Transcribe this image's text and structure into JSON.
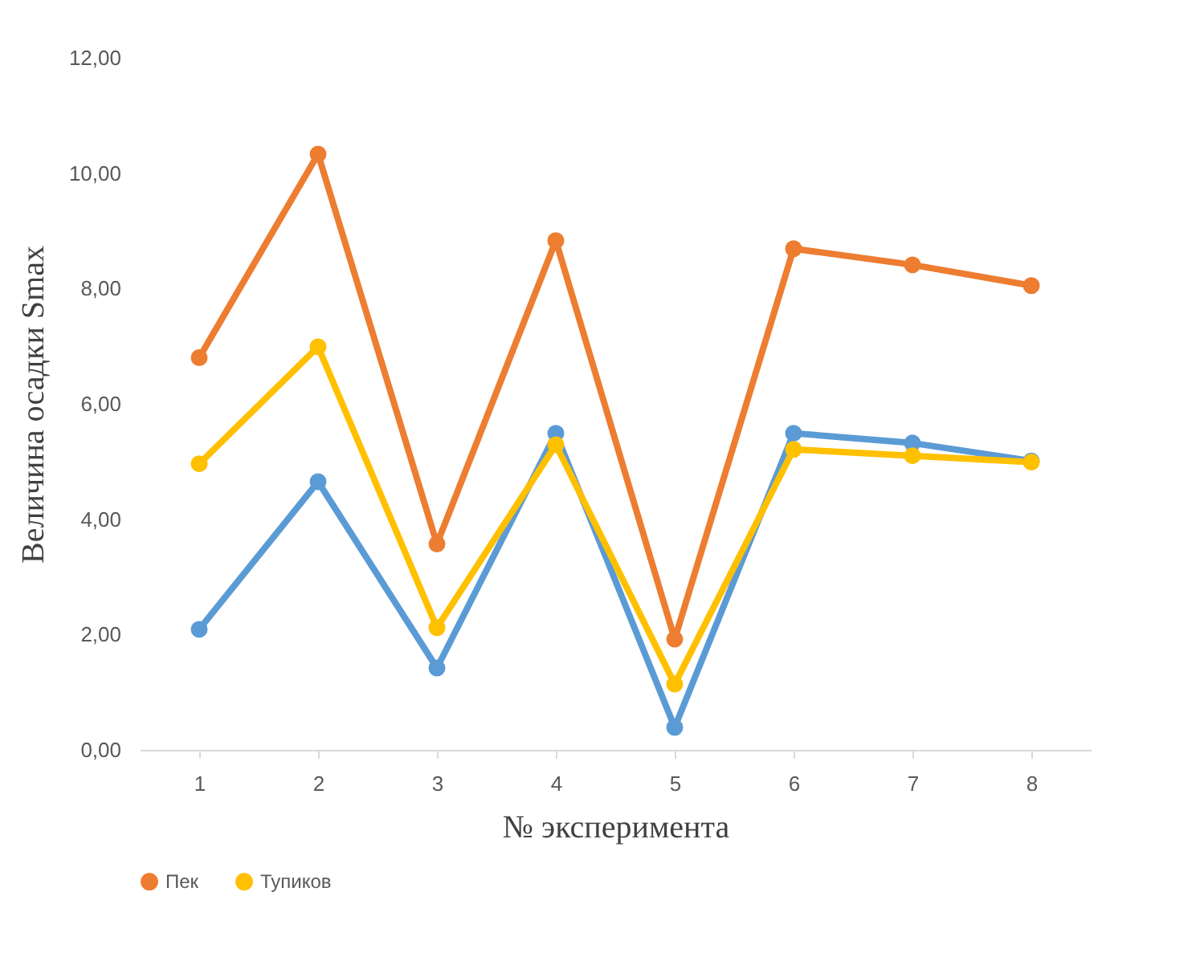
{
  "chart_data": {
    "type": "line",
    "xlabel": "№ эксперимента",
    "ylabel": "Величина осадки Smax",
    "categories": [
      "1",
      "2",
      "3",
      "4",
      "5",
      "6",
      "7",
      "8"
    ],
    "series": [
      {
        "color": "#5b9bd5",
        "values": [
          2.09,
          4.65,
          1.42,
          5.49,
          0.39,
          5.49,
          5.32,
          5.01
        ]
      },
      {
        "name": "Пек",
        "color": "#ed7d31",
        "values": [
          6.8,
          10.33,
          3.57,
          8.83,
          1.92,
          8.69,
          8.41,
          8.05
        ]
      },
      {
        "name": "Тупиков",
        "color": "#ffc000",
        "values": [
          4.96,
          6.99,
          2.12,
          5.29,
          1.14,
          5.21,
          5.1,
          4.99
        ]
      }
    ],
    "ylim": [
      0,
      12
    ],
    "yticks": [
      {
        "value": 0,
        "label": "0,00"
      },
      {
        "value": 2,
        "label": "2,00"
      },
      {
        "value": 4,
        "label": "4,00"
      },
      {
        "value": 6,
        "label": "6,00"
      },
      {
        "value": 8,
        "label": "8,00"
      },
      {
        "value": 10,
        "label": "10,00"
      },
      {
        "value": 12,
        "label": "12,00"
      }
    ],
    "grid": false,
    "legend": "bottom",
    "marker": "circle",
    "line_style": "solid"
  }
}
